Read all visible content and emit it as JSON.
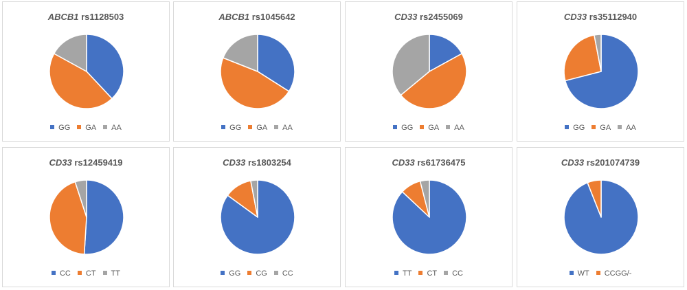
{
  "colors": {
    "blue": "#4472C4",
    "orange": "#ED7D31",
    "gray": "#A5A5A5"
  },
  "chart_data": [
    {
      "type": "pie",
      "title_gene": "ABCB1",
      "title_snp": "rs1128503",
      "legend_position": "bottom",
      "labels": [
        "GG",
        "GA",
        "AA"
      ],
      "values": [
        38,
        45,
        17
      ],
      "colors": [
        "#4472C4",
        "#ED7D31",
        "#A5A5A5"
      ]
    },
    {
      "type": "pie",
      "title_gene": "ABCB1",
      "title_snp": "rs1045642",
      "legend_position": "bottom",
      "labels": [
        "GG",
        "GA",
        "AA"
      ],
      "values": [
        34,
        47,
        19
      ],
      "colors": [
        "#4472C4",
        "#ED7D31",
        "#A5A5A5"
      ]
    },
    {
      "type": "pie",
      "title_gene": "CD33",
      "title_snp": "rs2455069",
      "legend_position": "bottom",
      "labels": [
        "GG",
        "GA",
        "AA"
      ],
      "values": [
        17,
        47,
        36
      ],
      "colors": [
        "#4472C4",
        "#ED7D31",
        "#A5A5A5"
      ]
    },
    {
      "type": "pie",
      "title_gene": "CD33",
      "title_snp": "rs35112940",
      "legend_position": "bottom",
      "labels": [
        "GG",
        "GA",
        "AA"
      ],
      "values": [
        71,
        26,
        3
      ],
      "colors": [
        "#4472C4",
        "#ED7D31",
        "#A5A5A5"
      ]
    },
    {
      "type": "pie",
      "title_gene": "CD33",
      "title_snp": "rs12459419",
      "legend_position": "bottom",
      "labels": [
        "CC",
        "CT",
        "TT"
      ],
      "values": [
        51,
        44,
        5
      ],
      "colors": [
        "#4472C4",
        "#ED7D31",
        "#A5A5A5"
      ]
    },
    {
      "type": "pie",
      "title_gene": "CD33",
      "title_snp": "rs1803254",
      "legend_position": "bottom",
      "labels": [
        "GG",
        "CG",
        "CC"
      ],
      "values": [
        85,
        12,
        3
      ],
      "colors": [
        "#4472C4",
        "#ED7D31",
        "#A5A5A5"
      ]
    },
    {
      "type": "pie",
      "title_gene": "CD33",
      "title_snp": "rs61736475",
      "legend_position": "bottom",
      "labels": [
        "TT",
        "CT",
        "CC"
      ],
      "values": [
        87,
        9,
        4
      ],
      "colors": [
        "#4472C4",
        "#ED7D31",
        "#A5A5A5"
      ]
    },
    {
      "type": "pie",
      "title_gene": "CD33",
      "title_snp": "rs201074739",
      "legend_position": "bottom",
      "labels": [
        "WT",
        "CCGG/-"
      ],
      "values": [
        94,
        6
      ],
      "colors": [
        "#4472C4",
        "#ED7D31"
      ]
    }
  ]
}
